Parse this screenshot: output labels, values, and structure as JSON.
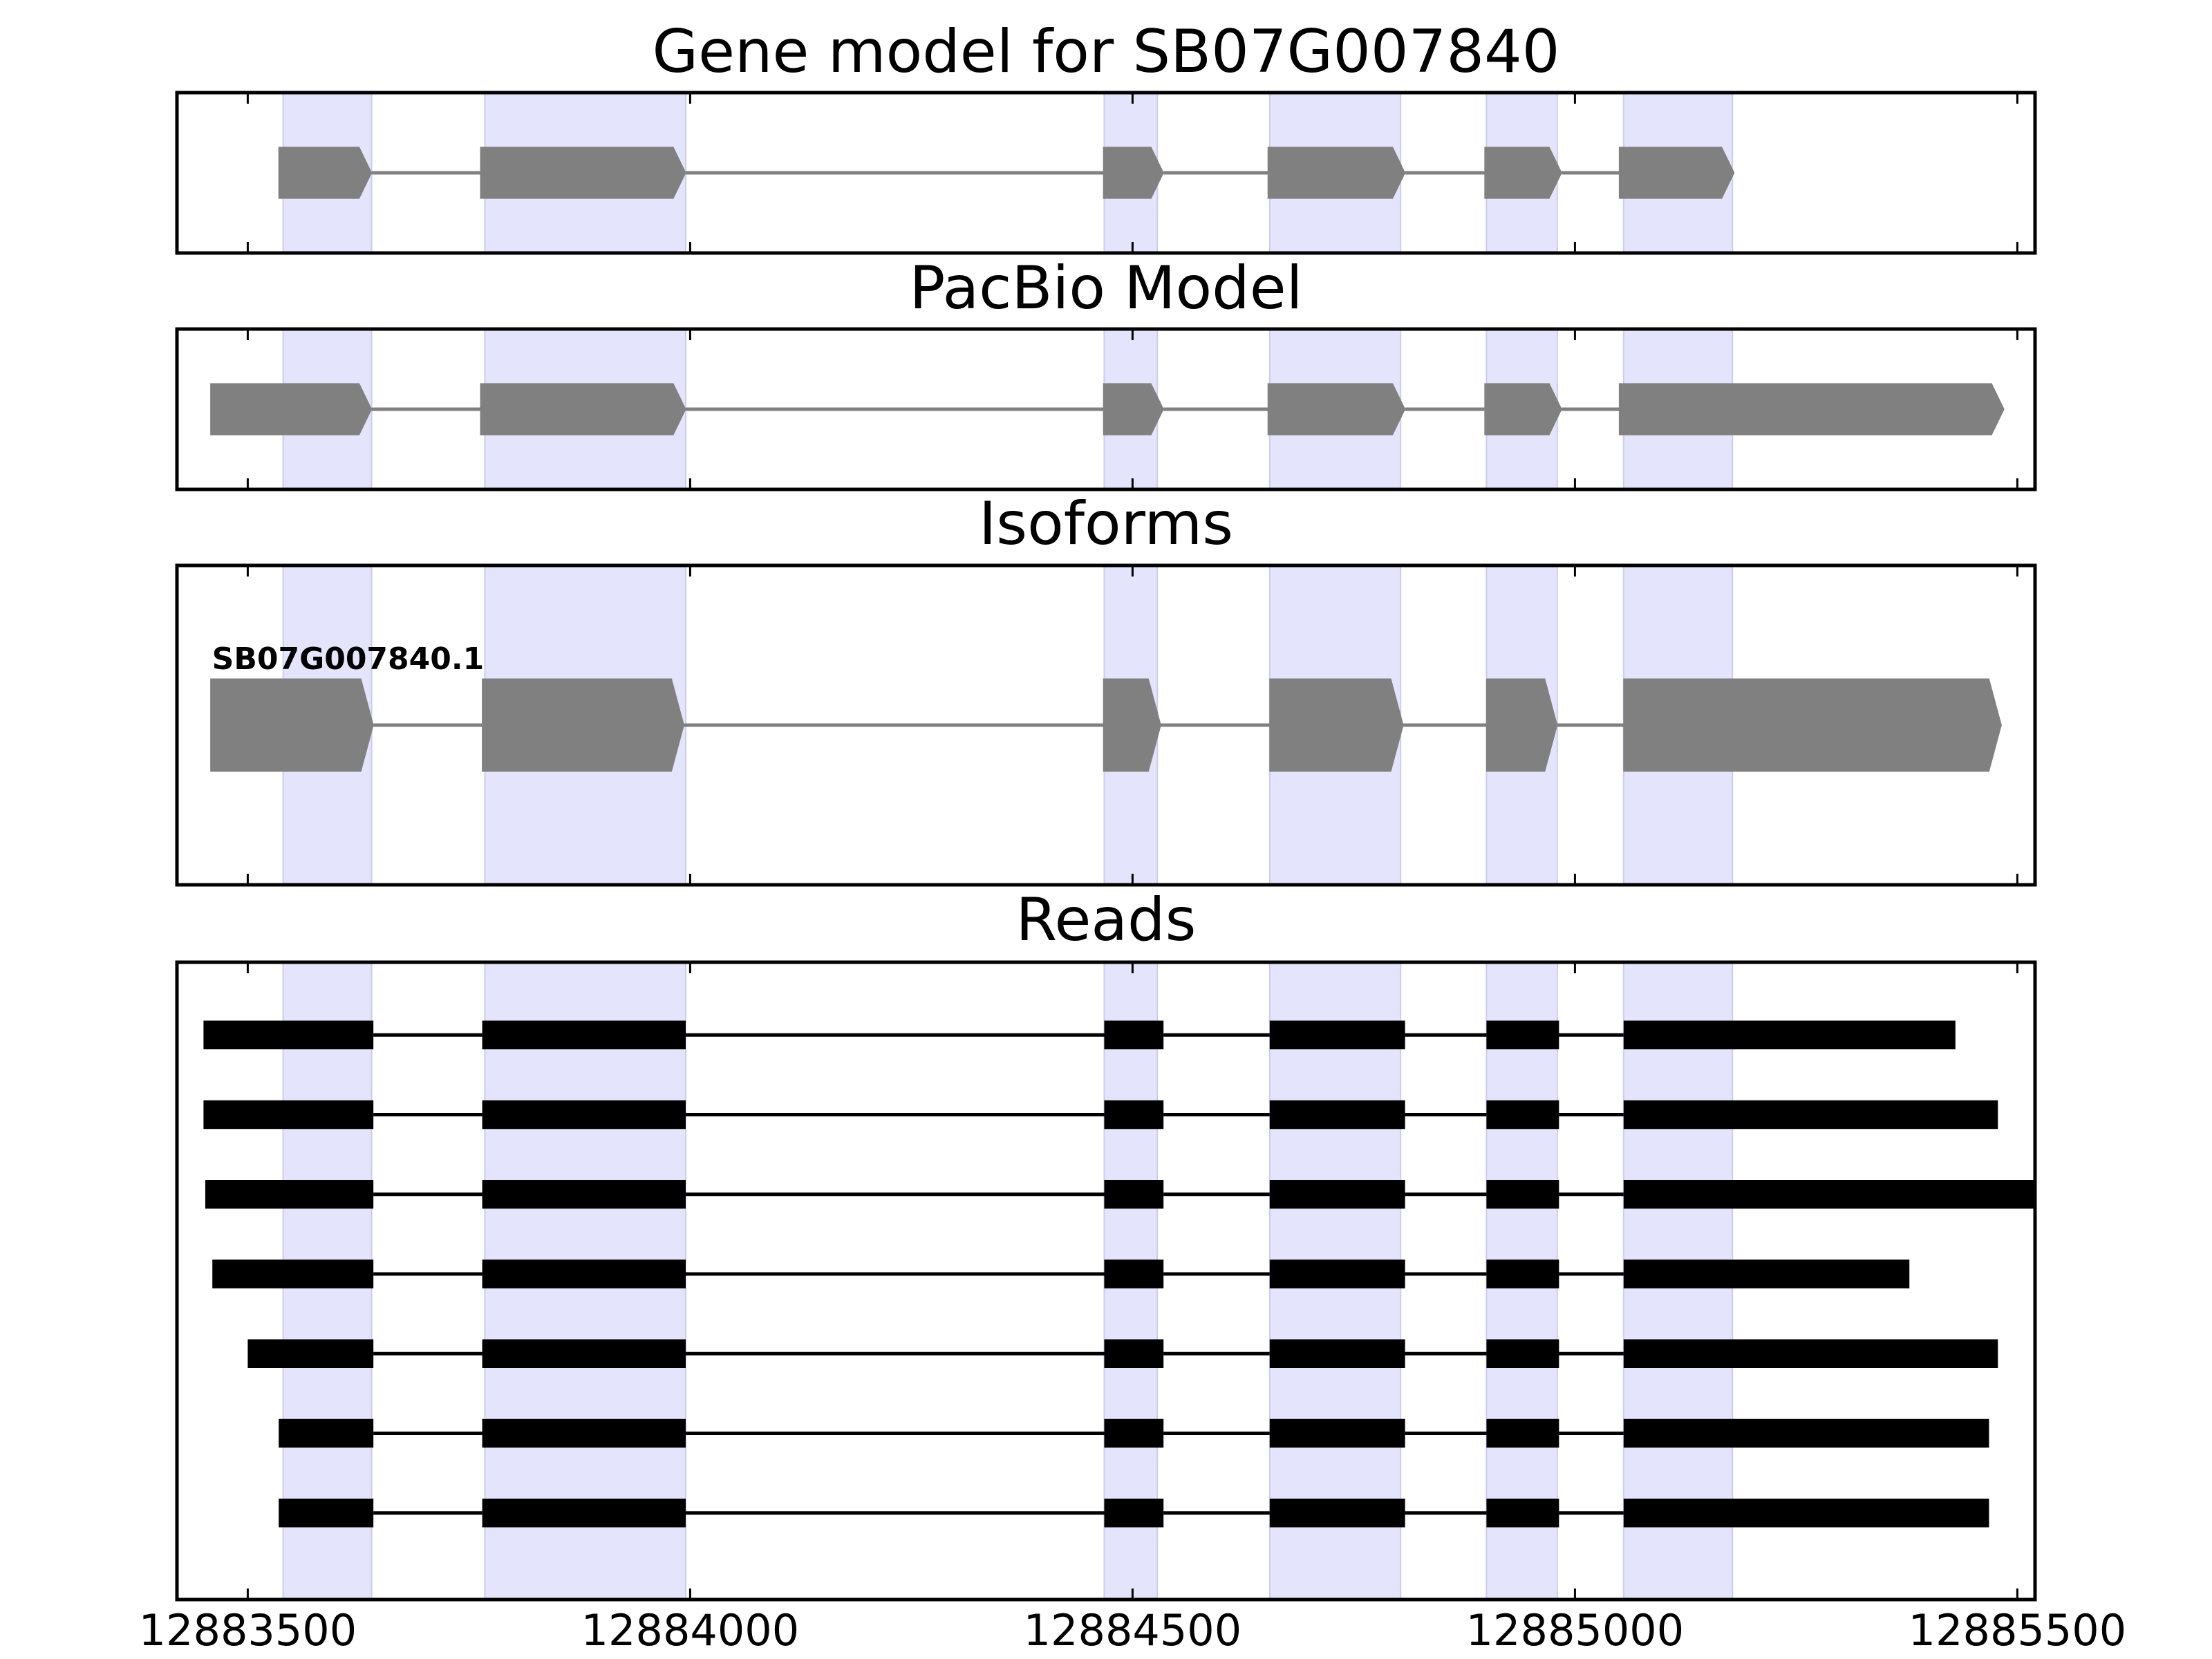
{
  "chart_data": {
    "type": "gene-structure",
    "xlim": [
      12883420,
      12885520
    ],
    "xticks": [
      12883500,
      12884000,
      12884500,
      12885000,
      12885500
    ],
    "xtick_labels": [
      "12883500",
      "12884000",
      "12884500",
      "12885000",
      "12885500"
    ],
    "exon_bands": [
      [
        12883540,
        12883640
      ],
      [
        12883768,
        12883995
      ],
      [
        12884468,
        12884528
      ],
      [
        12884655,
        12884803
      ],
      [
        12884900,
        12884980
      ],
      [
        12885055,
        12885178
      ]
    ],
    "panels": [
      {
        "id": "gene-model",
        "title": "Gene model for SB07G007840",
        "kind": "model",
        "feature_height": 0.32,
        "isoforms": [
          {
            "label": "",
            "exons": [
              [
                12883535,
                12883640
              ],
              [
                12883763,
                12883995
              ],
              [
                12884467,
                12884535
              ],
              [
                12884653,
                12884808
              ],
              [
                12884898,
                12884985
              ],
              [
                12885050,
                12885180
              ]
            ]
          }
        ]
      },
      {
        "id": "pacbio-model",
        "title": "PacBio Model",
        "kind": "model",
        "feature_height": 0.32,
        "isoforms": [
          {
            "label": "",
            "exons": [
              [
                12883458,
                12883640
              ],
              [
                12883763,
                12883995
              ],
              [
                12884467,
                12884535
              ],
              [
                12884653,
                12884808
              ],
              [
                12884898,
                12884985
              ],
              [
                12885050,
                12885485
              ]
            ]
          }
        ]
      },
      {
        "id": "isoforms",
        "title": "Isoforms",
        "kind": "model",
        "feature_height": 0.29,
        "isoforms": [
          {
            "label": "SB07G007840.1",
            "exons": [
              [
                12883458,
                12883642
              ],
              [
                12883765,
                12883993
              ],
              [
                12884467,
                12884532
              ],
              [
                12884655,
                12884806
              ],
              [
                12884900,
                12884980
              ],
              [
                12885055,
                12885482
              ]
            ]
          }
        ]
      },
      {
        "id": "reads",
        "title": "Reads",
        "kind": "reads",
        "feature_height": 0.045,
        "reads": [
          [
            [
              12883450,
              12883642
            ],
            [
              12883765,
              12883995
            ],
            [
              12884468,
              12884535
            ],
            [
              12884655,
              12884808
            ],
            [
              12884900,
              12884982
            ],
            [
              12885055,
              12885430
            ]
          ],
          [
            [
              12883450,
              12883642
            ],
            [
              12883765,
              12883995
            ],
            [
              12884468,
              12884535
            ],
            [
              12884655,
              12884808
            ],
            [
              12884900,
              12884982
            ],
            [
              12885055,
              12885478
            ]
          ],
          [
            [
              12883452,
              12883642
            ],
            [
              12883765,
              12883995
            ],
            [
              12884468,
              12884535
            ],
            [
              12884655,
              12884808
            ],
            [
              12884900,
              12884982
            ],
            [
              12885055,
              12885520
            ]
          ],
          [
            [
              12883460,
              12883642
            ],
            [
              12883765,
              12883995
            ],
            [
              12884468,
              12884535
            ],
            [
              12884655,
              12884808
            ],
            [
              12884900,
              12884982
            ],
            [
              12885055,
              12885378
            ]
          ],
          [
            [
              12883500,
              12883642
            ],
            [
              12883765,
              12883995
            ],
            [
              12884468,
              12884535
            ],
            [
              12884655,
              12884808
            ],
            [
              12884900,
              12884982
            ],
            [
              12885055,
              12885478
            ]
          ],
          [
            [
              12883535,
              12883642
            ],
            [
              12883765,
              12883995
            ],
            [
              12884468,
              12884535
            ],
            [
              12884655,
              12884808
            ],
            [
              12884900,
              12884982
            ],
            [
              12885055,
              12885468
            ]
          ],
          [
            [
              12883535,
              12883642
            ],
            [
              12883765,
              12883995
            ],
            [
              12884468,
              12884535
            ],
            [
              12884655,
              12884808
            ],
            [
              12884900,
              12884982
            ],
            [
              12885055,
              12885468
            ]
          ]
        ]
      }
    ],
    "colors": {
      "exon_band": "#e4e4fc",
      "model_feature": "#808080",
      "read_feature": "#000000"
    }
  }
}
